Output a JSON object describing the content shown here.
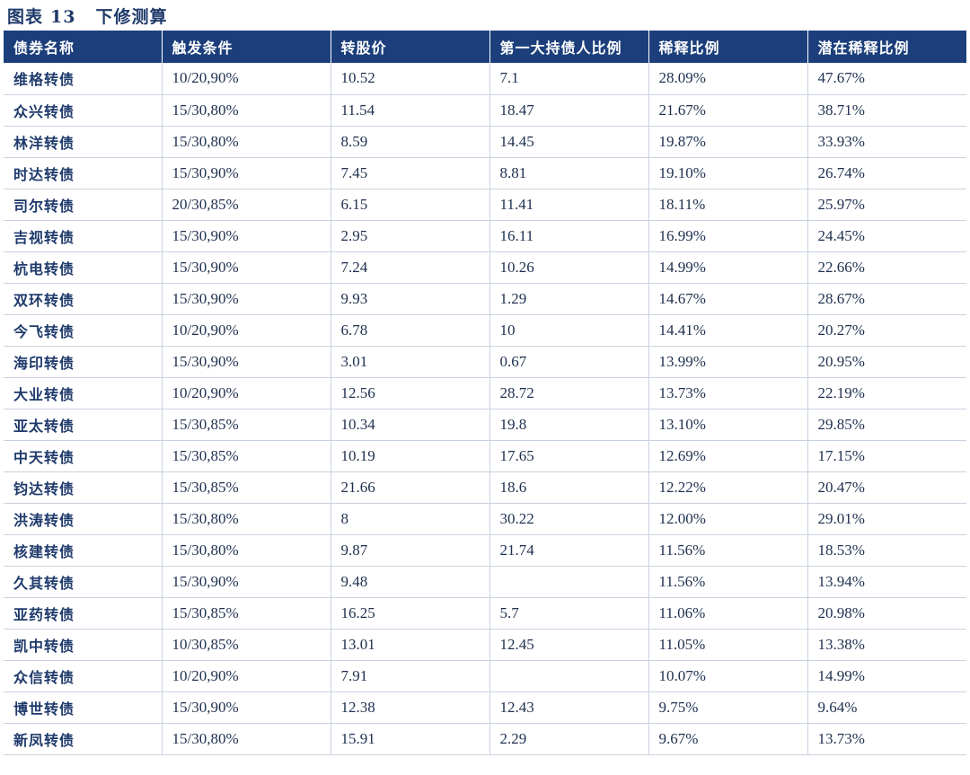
{
  "caption": {
    "label": "图表",
    "number": "13",
    "title": "下修测算"
  },
  "table": {
    "headers": [
      "债券名称",
      "触发条件",
      "转股价",
      "第一大持债人比例",
      "稀释比例",
      "潜在稀释比例"
    ],
    "rows": [
      [
        "维格转债",
        "10/20,90%",
        "10.52",
        "7.1",
        "28.09%",
        "47.67%"
      ],
      [
        "众兴转债",
        "15/30,80%",
        "11.54",
        "18.47",
        "21.67%",
        "38.71%"
      ],
      [
        "林洋转债",
        "15/30,80%",
        "8.59",
        "14.45",
        "19.87%",
        "33.93%"
      ],
      [
        "时达转债",
        "15/30,90%",
        "7.45",
        "8.81",
        "19.10%",
        "26.74%"
      ],
      [
        "司尔转债",
        "20/30,85%",
        "6.15",
        "11.41",
        "18.11%",
        "25.97%"
      ],
      [
        "吉视转债",
        "15/30,90%",
        "2.95",
        "16.11",
        "16.99%",
        "24.45%"
      ],
      [
        "杭电转债",
        "15/30,90%",
        "7.24",
        "10.26",
        "14.99%",
        "22.66%"
      ],
      [
        "双环转债",
        "15/30,90%",
        "9.93",
        "1.29",
        "14.67%",
        "28.67%"
      ],
      [
        "今飞转债",
        "10/20,90%",
        "6.78",
        "10",
        "14.41%",
        "20.27%"
      ],
      [
        "海印转债",
        "15/30,90%",
        "3.01",
        "0.67",
        "13.99%",
        "20.95%"
      ],
      [
        "大业转债",
        "10/20,90%",
        "12.56",
        "28.72",
        "13.73%",
        "22.19%"
      ],
      [
        "亚太转债",
        "15/30,85%",
        "10.34",
        "19.8",
        "13.10%",
        "29.85%"
      ],
      [
        "中天转债",
        "15/30,85%",
        "10.19",
        "17.65",
        "12.69%",
        "17.15%"
      ],
      [
        "钧达转债",
        "15/30,85%",
        "21.66",
        "18.6",
        "12.22%",
        "20.47%"
      ],
      [
        "洪涛转债",
        "15/30,80%",
        "8",
        "30.22",
        "12.00%",
        "29.01%"
      ],
      [
        "核建转债",
        "15/30,80%",
        "9.87",
        "21.74",
        "11.56%",
        "18.53%"
      ],
      [
        "久其转债",
        "15/30,90%",
        "9.48",
        "",
        "11.56%",
        "13.94%"
      ],
      [
        "亚药转债",
        "15/30,85%",
        "16.25",
        "5.7",
        "11.06%",
        "20.98%"
      ],
      [
        "凯中转债",
        "10/30,85%",
        "13.01",
        "12.45",
        "11.05%",
        "13.38%"
      ],
      [
        "众信转债",
        "10/20,90%",
        "7.91",
        "",
        "10.07%",
        "14.99%"
      ],
      [
        "博世转债",
        "15/30,90%",
        "12.38",
        "12.43",
        "9.75%",
        "9.64%"
      ],
      [
        "新凤转债",
        "15/30,80%",
        "15.91",
        "2.29",
        "9.67%",
        "13.73%"
      ]
    ]
  },
  "colors": {
    "header_bg": "#1c3f7c",
    "header_text": "#ffffff",
    "caption_text": "#1f3a6b",
    "grid": "#c9d2df"
  }
}
